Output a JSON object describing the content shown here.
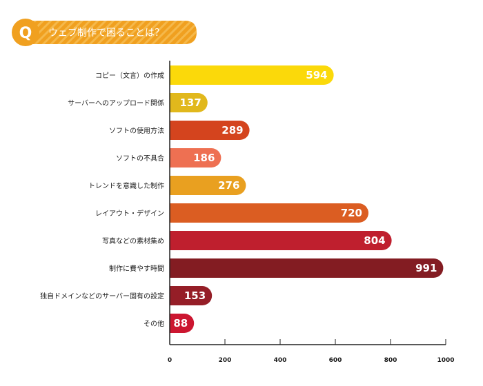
{
  "badge": {
    "letter": "Q",
    "title": "ウェブ制作で困ることは？",
    "color": "#f0a020",
    "stripe_color": "#f5b84a"
  },
  "chart_data": {
    "type": "bar",
    "orientation": "horizontal",
    "title": "ウェブ制作で困ることは？",
    "xlabel": "",
    "ylabel": "",
    "xlim": [
      0,
      1000
    ],
    "x_ticks": [
      "0",
      "200",
      "400",
      "600",
      "800",
      "1000"
    ],
    "grid": false,
    "categories": [
      "コピー（文言）の作成",
      "サーバーへのアップロード関係",
      "ソフトの使用方法",
      "ソフトの不具合",
      "トレンドを意識した制作",
      "レイアウト・デザイン",
      "写真などの素材集め",
      "制作に費やす時間",
      "独自ドメインなどのサーバー固有の設定",
      "その他"
    ],
    "values": [
      594,
      137,
      289,
      186,
      276,
      720,
      804,
      991,
      153,
      88
    ],
    "value_labels": [
      "594",
      "137",
      "289",
      "186",
      "276",
      "720",
      "804",
      "991",
      "153",
      "88"
    ],
    "colors": [
      "#fbd90a",
      "#e1b81c",
      "#d4441e",
      "#ee7052",
      "#e9a020",
      "#db5d22",
      "#bf1f2e",
      "#831c22",
      "#951e27",
      "#cc1630"
    ]
  }
}
